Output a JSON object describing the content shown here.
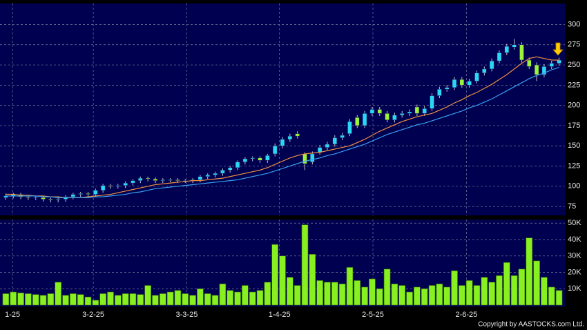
{
  "chart_data": {
    "type": "candlestick",
    "x": [
      0,
      1,
      2,
      3,
      4,
      5,
      6,
      7,
      8,
      9,
      10,
      11,
      12,
      13,
      14,
      15,
      16,
      17,
      18,
      19,
      20,
      21,
      22,
      23,
      24,
      25,
      26,
      27,
      28,
      29,
      30,
      31,
      32,
      33,
      34,
      35,
      36,
      37,
      38,
      39,
      40,
      41,
      42,
      43,
      44,
      45,
      46,
      47,
      48,
      49,
      50,
      51,
      52,
      53,
      54,
      55,
      56,
      57,
      58,
      59,
      60,
      61,
      62,
      63,
      64,
      65,
      66,
      67,
      68,
      69,
      70,
      71,
      72,
      73,
      74
    ],
    "open": [
      86,
      88,
      90,
      87,
      86,
      86,
      84,
      83,
      84,
      87,
      90,
      91,
      90,
      95,
      101,
      100,
      101,
      104,
      107,
      110,
      109,
      107,
      108,
      108,
      107,
      107,
      108,
      112,
      114,
      116,
      120,
      123,
      130,
      134,
      135,
      132,
      140,
      150,
      158,
      165,
      140,
      130,
      142,
      148,
      152,
      160,
      165,
      185,
      175,
      190,
      195,
      190,
      182,
      188,
      190,
      198,
      190,
      196,
      212,
      220,
      222,
      232,
      225,
      230,
      240,
      245,
      255,
      265,
      272,
      275,
      256,
      250,
      238,
      248,
      252
    ],
    "high": [
      91,
      92,
      92,
      89,
      88,
      88,
      86,
      86,
      89,
      92,
      93,
      93,
      97,
      103,
      103,
      103,
      106,
      109,
      112,
      112,
      111,
      110,
      110,
      110,
      109,
      110,
      114,
      116,
      118,
      122,
      125,
      132,
      136,
      137,
      137,
      140,
      153,
      161,
      165,
      168,
      142,
      143,
      151,
      155,
      163,
      166,
      183,
      188,
      193,
      198,
      198,
      193,
      191,
      193,
      195,
      201,
      199,
      215,
      223,
      225,
      235,
      235,
      233,
      243,
      248,
      258,
      268,
      276,
      282,
      278,
      259,
      253,
      251,
      255,
      259
    ],
    "low": [
      83,
      85,
      84,
      83,
      83,
      81,
      80,
      80,
      81,
      84,
      87,
      87,
      87,
      92,
      97,
      97,
      98,
      101,
      104,
      106,
      104,
      104,
      105,
      104,
      104,
      104,
      105,
      109,
      111,
      113,
      117,
      120,
      127,
      131,
      129,
      129,
      137,
      147,
      155,
      159,
      120,
      127,
      139,
      145,
      149,
      157,
      162,
      172,
      172,
      187,
      187,
      179,
      179,
      185,
      187,
      187,
      187,
      193,
      209,
      217,
      219,
      222,
      222,
      227,
      237,
      242,
      252,
      262,
      269,
      253,
      245,
      230,
      235,
      245,
      249
    ],
    "close": [
      88,
      90,
      87,
      86,
      86,
      84,
      83,
      84,
      87,
      90,
      91,
      90,
      95,
      101,
      100,
      101,
      104,
      107,
      110,
      109,
      107,
      108,
      108,
      107,
      107,
      108,
      112,
      114,
      116,
      120,
      123,
      130,
      134,
      135,
      132,
      138,
      150,
      158,
      162,
      162,
      128,
      140,
      148,
      152,
      160,
      163,
      180,
      175,
      190,
      195,
      190,
      182,
      188,
      190,
      192,
      190,
      196,
      212,
      220,
      222,
      232,
      225,
      230,
      240,
      245,
      255,
      265,
      273,
      275,
      256,
      248,
      238,
      248,
      252,
      256
    ],
    "volume": [
      7000,
      8000,
      7500,
      7000,
      6500,
      6000,
      7000,
      14000,
      6000,
      7000,
      6500,
      5000,
      3000,
      7000,
      8000,
      6000,
      7000,
      7000,
      6500,
      12000,
      6000,
      7000,
      8000,
      9000,
      7000,
      6000,
      10000,
      7000,
      6000,
      13000,
      9000,
      8000,
      12000,
      8000,
      9000,
      14000,
      37000,
      30000,
      17000,
      12000,
      49000,
      31000,
      15000,
      14000,
      14000,
      13000,
      23000,
      15000,
      11000,
      16000,
      10000,
      22000,
      13000,
      12000,
      8000,
      11000,
      10000,
      12000,
      13000,
      11000,
      21000,
      12000,
      15000,
      12000,
      17000,
      14000,
      18000,
      26000,
      18000,
      22000,
      41000,
      27000,
      17000,
      11000,
      9000
    ],
    "up_color": "#2ad8f5",
    "down_color": "#9cf23a",
    "volume_color": "#88f020",
    "series": [
      {
        "color": "#f09040",
        "values": [
          90,
          90,
          89,
          89,
          88,
          88,
          87,
          87,
          86,
          86,
          86,
          87,
          88,
          89,
          90,
          92,
          94,
          96,
          98,
          100,
          102,
          103,
          104,
          105,
          106,
          107,
          107,
          108,
          109,
          110,
          112,
          114,
          116,
          118,
          120,
          123,
          127,
          131,
          135,
          138,
          140,
          141,
          142,
          144,
          146,
          148,
          150,
          154,
          158,
          163,
          168,
          172,
          176,
          180,
          183,
          186,
          188,
          190,
          194,
          198,
          203,
          207,
          212,
          216,
          221,
          226,
          232,
          238,
          245,
          252,
          258,
          260,
          258,
          256,
          256
        ]
      },
      {
        "color": "#3aa0f0",
        "values": [
          88,
          88,
          88,
          88,
          88,
          87,
          87,
          86,
          86,
          86,
          86,
          86,
          87,
          87,
          88,
          89,
          90,
          92,
          93,
          95,
          97,
          98,
          99,
          100,
          101,
          102,
          103,
          104,
          105,
          106,
          107,
          108,
          110,
          112,
          114,
          116,
          119,
          122,
          125,
          128,
          131,
          133,
          135,
          138,
          140,
          143,
          146,
          149,
          152,
          156,
          160,
          164,
          167,
          170,
          173,
          176,
          178,
          181,
          184,
          187,
          190,
          193,
          197,
          200,
          204,
          208,
          213,
          218,
          223,
          228,
          233,
          237,
          240,
          244,
          247
        ]
      }
    ],
    "xlim": [
      -0.5,
      74.5
    ],
    "xticks": [
      {
        "value": 0.9,
        "label": "1-25"
      },
      {
        "value": 11.7,
        "label": "3-2-25"
      },
      {
        "value": 24.2,
        "label": "3-3-25"
      },
      {
        "value": 36.6,
        "label": "1-4-25"
      },
      {
        "value": 49.1,
        "label": "2-5-25"
      },
      {
        "value": 61.6,
        "label": "2-6-25"
      }
    ],
    "ylim": [
      64,
      326
    ],
    "yticks": [
      75,
      100,
      125,
      150,
      175,
      200,
      225,
      250,
      275,
      300
    ],
    "y2lim": [
      0,
      52000
    ],
    "y2ticks": [
      {
        "value": 10000,
        "label": "10K"
      },
      {
        "value": 20000,
        "label": "20K"
      },
      {
        "value": 30000,
        "label": "30K"
      },
      {
        "value": 40000,
        "label": "40K"
      },
      {
        "value": 50000,
        "label": "50K"
      }
    ],
    "grid": true,
    "annotation": "Copyright by AASTOCKS.com Ltd."
  }
}
